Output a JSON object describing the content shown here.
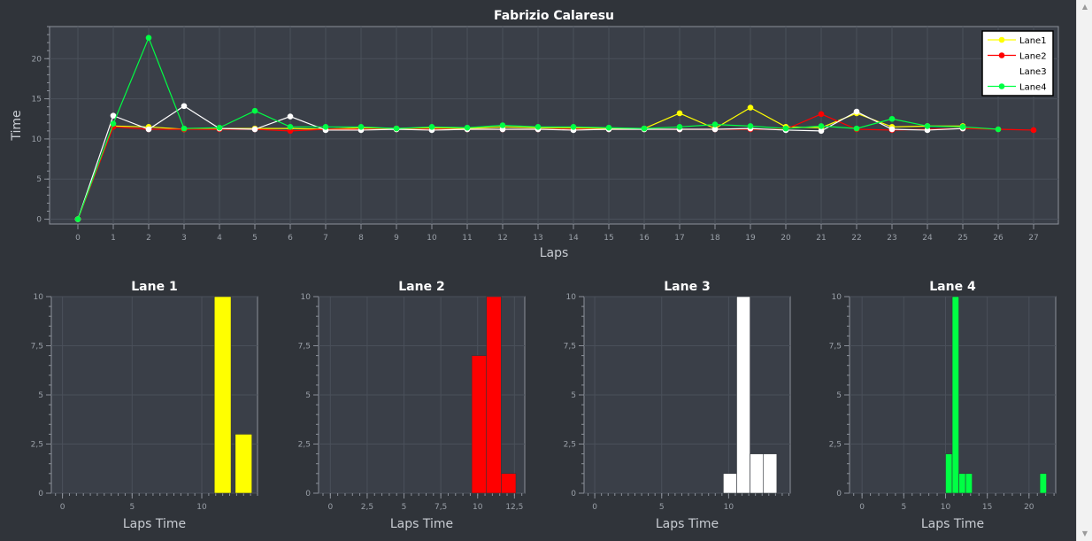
{
  "chart_data": [
    {
      "type": "line",
      "title": "Fabrizio Calaresu",
      "xlabel": "Laps",
      "ylabel": "Time",
      "xlim": [
        -0.8,
        27.7
      ],
      "ylim": [
        -0.6,
        24
      ],
      "xticks": [
        0,
        1,
        2,
        3,
        4,
        5,
        6,
        7,
        8,
        9,
        10,
        11,
        12,
        13,
        14,
        15,
        16,
        17,
        18,
        19,
        20,
        21,
        22,
        23,
        24,
        25,
        26,
        27
      ],
      "yticks": [
        0,
        5,
        10,
        15,
        20
      ],
      "legend": "top-right",
      "grid": true,
      "series": [
        {
          "name": "Lane1",
          "color": "#ffff00",
          "x": [
            0,
            1,
            2,
            3,
            4,
            5,
            6,
            7,
            8,
            9,
            10,
            11,
            12,
            13,
            14,
            15,
            16,
            17,
            18,
            19,
            20,
            21,
            22,
            23,
            24,
            25
          ],
          "y": [
            0,
            11.6,
            11.5,
            11.2,
            11.3,
            11.3,
            11.3,
            11.2,
            11.4,
            11.3,
            11.4,
            11.3,
            11.5,
            11.4,
            11.4,
            11.3,
            11.3,
            13.2,
            11.3,
            13.9,
            11.5,
            11.4,
            13.2,
            11.5,
            11.6,
            11.6
          ]
        },
        {
          "name": "Lane2",
          "color": "#ff0000",
          "x": [
            0,
            1,
            2,
            3,
            4,
            5,
            6,
            7,
            8,
            9,
            10,
            11,
            12,
            13,
            14,
            15,
            16,
            17,
            18,
            19,
            20,
            21,
            22,
            23,
            24,
            25,
            26,
            27
          ],
          "y": [
            0,
            11.5,
            11.2,
            11.2,
            11.2,
            11.2,
            11.0,
            11.2,
            11.2,
            11.2,
            11.2,
            11.2,
            11.2,
            11.2,
            11.2,
            11.2,
            11.2,
            11.2,
            11.2,
            11.2,
            11.2,
            13.1,
            11.2,
            11.1,
            11.2,
            11.3,
            11.2,
            11.1
          ]
        },
        {
          "name": "Lane3",
          "color": "#ffffff",
          "x": [
            0,
            1,
            2,
            3,
            4,
            5,
            6,
            7,
            8,
            9,
            10,
            11,
            12,
            13,
            14,
            15,
            16,
            17,
            18,
            19,
            20,
            21,
            22,
            23,
            24,
            25
          ],
          "y": [
            0,
            12.9,
            11.2,
            14.1,
            11.3,
            11.2,
            12.8,
            11.1,
            11.1,
            11.2,
            11.1,
            11.2,
            11.2,
            11.2,
            11.1,
            11.2,
            11.2,
            11.2,
            11.2,
            11.3,
            11.1,
            11.0,
            13.4,
            11.2,
            11.1,
            11.3
          ]
        },
        {
          "name": "Lane4",
          "color": "#00ff44",
          "x": [
            0,
            1,
            2,
            3,
            4,
            5,
            6,
            7,
            8,
            9,
            10,
            11,
            12,
            13,
            14,
            15,
            16,
            17,
            18,
            19,
            20,
            21,
            22,
            23,
            24,
            25,
            26
          ],
          "y": [
            0,
            11.9,
            22.6,
            11.3,
            11.4,
            13.5,
            11.5,
            11.5,
            11.5,
            11.3,
            11.5,
            11.4,
            11.7,
            11.5,
            11.5,
            11.4,
            11.3,
            11.5,
            11.8,
            11.6,
            11.3,
            11.6,
            11.3,
            12.5,
            11.6,
            11.5,
            11.2
          ]
        }
      ]
    },
    {
      "type": "bar",
      "title": "Lane 1",
      "xlabel": "Laps Time",
      "ylabel": "",
      "color": "#ffff00",
      "xlim": [
        -0.8,
        14.0
      ],
      "ylim": [
        0,
        10
      ],
      "xticks": [
        "0",
        "5",
        "10"
      ],
      "xtick_values": [
        0,
        5,
        10
      ],
      "yticks": [
        "0",
        "2,5",
        "5",
        "7,5",
        "10"
      ],
      "ytick_values": [
        0,
        2.5,
        5,
        7.5,
        10
      ],
      "bins": [
        {
          "start": 10.9,
          "end": 12.1,
          "count": 10
        },
        {
          "start": 12.4,
          "end": 13.6,
          "count": 3
        }
      ]
    },
    {
      "type": "bar",
      "title": "Lane 2",
      "xlabel": "Laps Time",
      "ylabel": "",
      "color": "#ff0000",
      "xlim": [
        -0.8,
        13.2
      ],
      "ylim": [
        0,
        10
      ],
      "xticks": [
        "0",
        "2,5",
        "5",
        "7,5",
        "10",
        "12,5"
      ],
      "xtick_values": [
        0,
        2.5,
        5,
        7.5,
        10,
        12.5
      ],
      "yticks": [
        "0",
        "2,5",
        "5",
        "7,5",
        "10"
      ],
      "ytick_values": [
        0,
        2.5,
        5,
        7.5,
        10
      ],
      "bins": [
        {
          "start": 9.6,
          "end": 10.6,
          "count": 7
        },
        {
          "start": 10.6,
          "end": 11.6,
          "count": 10
        },
        {
          "start": 11.6,
          "end": 12.6,
          "count": 1
        }
      ]
    },
    {
      "type": "bar",
      "title": "Lane 3",
      "xlabel": "Laps Time",
      "ylabel": "",
      "color": "#ffffff",
      "xlim": [
        -0.8,
        14.6
      ],
      "ylim": [
        0,
        10
      ],
      "xticks": [
        "0",
        "5",
        "10"
      ],
      "xtick_values": [
        0,
        5,
        10
      ],
      "yticks": [
        "0",
        "2,5",
        "5",
        "7,5",
        "10"
      ],
      "ytick_values": [
        0,
        2.5,
        5,
        7.5,
        10
      ],
      "bins": [
        {
          "start": 9.6,
          "end": 10.6,
          "count": 1
        },
        {
          "start": 10.6,
          "end": 11.6,
          "count": 10
        },
        {
          "start": 11.6,
          "end": 12.6,
          "count": 2
        },
        {
          "start": 12.6,
          "end": 13.6,
          "count": 2
        }
      ]
    },
    {
      "type": "bar",
      "title": "Lane 4",
      "xlabel": "Laps Time",
      "ylabel": "",
      "color": "#00ff44",
      "xlim": [
        -1.5,
        23.2
      ],
      "ylim": [
        0,
        10
      ],
      "xticks": [
        "0",
        "5",
        "10",
        "15",
        "20"
      ],
      "xtick_values": [
        0,
        5,
        10,
        15,
        20
      ],
      "yticks": [
        "0",
        "2,5",
        "5",
        "7,5",
        "10"
      ],
      "ytick_values": [
        0,
        2.5,
        5,
        7.5,
        10
      ],
      "bins": [
        {
          "start": 10.0,
          "end": 10.8,
          "count": 2
        },
        {
          "start": 10.8,
          "end": 11.6,
          "count": 10
        },
        {
          "start": 11.6,
          "end": 12.4,
          "count": 1
        },
        {
          "start": 12.4,
          "end": 13.2,
          "count": 1
        },
        {
          "start": 21.3,
          "end": 22.1,
          "count": 1
        }
      ]
    }
  ],
  "theme": {
    "background": "#30343a",
    "plot_background": "#3a3f48",
    "grid": "#4a505a",
    "axis": "#8c919a",
    "tick_text": "#9aa0a8",
    "title_text": "#ffffff",
    "label_text": "#c8ccd2"
  },
  "scrollbar": {
    "up_icon": "triangle-up",
    "down_icon": "triangle-down"
  }
}
